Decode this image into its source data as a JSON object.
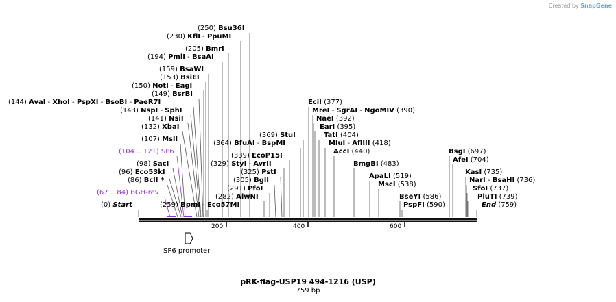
{
  "credit": {
    "prefix": "Created by",
    "brand": "SnapGene"
  },
  "title": "pRK-flag-USP19 494-1216 (USP)",
  "length": "759 bp",
  "feature": {
    "name": "SP6 promoter"
  },
  "ruler": {
    "ticks": [
      "200",
      "400",
      "600"
    ]
  },
  "labels": [
    {
      "pos": "(250)",
      "names": [
        "Bsu36I"
      ]
    },
    {
      "pos": "(230)",
      "names": [
        "KflI",
        "PpuMI"
      ]
    },
    {
      "pos": "(205)",
      "names": [
        "BmrI"
      ]
    },
    {
      "pos": "(194)",
      "names": [
        "PmlI",
        "BsaAI"
      ]
    },
    {
      "pos": "(159)",
      "names": [
        "BsaWI"
      ]
    },
    {
      "pos": "(153)",
      "names": [
        "BsiEI"
      ]
    },
    {
      "pos": "(150)",
      "names": [
        "NotI",
        "EagI"
      ]
    },
    {
      "pos": "(149)",
      "names": [
        "BsrBI"
      ]
    },
    {
      "pos": "(144)",
      "names": [
        "AvaI",
        "XhoI",
        "PspXI",
        "BsoBI",
        "PaeR7I"
      ]
    },
    {
      "pos": "(143)",
      "names": [
        "NspI",
        "SphI"
      ]
    },
    {
      "pos": "(141)",
      "names": [
        "NsiI"
      ]
    },
    {
      "pos": "(132)",
      "names": [
        "XbaI"
      ]
    },
    {
      "pos": "(107)",
      "names": [
        "MslI"
      ]
    },
    {
      "pos": "(104 .. 121)",
      "names": [
        "SP6"
      ],
      "primer": true
    },
    {
      "pos": "(98)",
      "names": [
        "SacI"
      ]
    },
    {
      "pos": "(96)",
      "names": [
        "Eco53kI"
      ]
    },
    {
      "pos": "(86)",
      "names": [
        "BclI *"
      ]
    },
    {
      "pos": "(67 .. 84)",
      "names": [
        "BGH-rev"
      ],
      "primer": true
    },
    {
      "pos": "(0)",
      "names": [
        "Start"
      ],
      "style": "start"
    },
    {
      "pos": "(259)",
      "names": [
        "BpmI",
        "Eco57MI"
      ]
    },
    {
      "pos": "(282)",
      "names": [
        "AlwNI"
      ]
    },
    {
      "pos": "(291)",
      "names": [
        "PfoI"
      ]
    },
    {
      "pos": "(305)",
      "names": [
        "BglI"
      ]
    },
    {
      "pos": "(325)",
      "names": [
        "PstI"
      ]
    },
    {
      "pos": "(329)",
      "names": [
        "StyI",
        "AvrII"
      ]
    },
    {
      "pos": "(339)",
      "names": [
        "EcoP15I"
      ]
    },
    {
      "pos": "(364)",
      "names": [
        "BfuAI",
        "BspMI"
      ]
    },
    {
      "pos": "(369)",
      "names": [
        "StuI"
      ]
    },
    {
      "pos": "(377)",
      "names": [
        "EciI"
      ],
      "pos_after": true
    },
    {
      "pos": "(390)",
      "names": [
        "MreI",
        "SgrAI",
        "NgoMIV"
      ],
      "pos_after": true
    },
    {
      "pos": "(392)",
      "names": [
        "NaeI"
      ],
      "pos_after": true
    },
    {
      "pos": "(395)",
      "names": [
        "EarI"
      ],
      "pos_after": true
    },
    {
      "pos": "(404)",
      "names": [
        "TatI"
      ],
      "pos_after": true
    },
    {
      "pos": "(418)",
      "names": [
        "MluI",
        "AflIII"
      ],
      "pos_after": true
    },
    {
      "pos": "(440)",
      "names": [
        "AccI"
      ],
      "pos_after": true
    },
    {
      "pos": "(483)",
      "names": [
        "BmgBI"
      ],
      "pos_after": true
    },
    {
      "pos": "(519)",
      "names": [
        "ApaLI"
      ],
      "pos_after": true
    },
    {
      "pos": "(538)",
      "names": [
        "MscI"
      ],
      "pos_after": true
    },
    {
      "pos": "(586)",
      "names": [
        "BseYI"
      ],
      "pos_after": true
    },
    {
      "pos": "(590)",
      "names": [
        "PspFI"
      ],
      "pos_after": true
    },
    {
      "pos": "(697)",
      "names": [
        "BsgI"
      ],
      "pos_after": true
    },
    {
      "pos": "(704)",
      "names": [
        "AfeI"
      ],
      "pos_after": true
    },
    {
      "pos": "(735)",
      "names": [
        "KasI"
      ],
      "pos_after": true
    },
    {
      "pos": "(736)",
      "names": [
        "NarI",
        "BsaHI"
      ],
      "pos_after": true
    },
    {
      "pos": "(737)",
      "names": [
        "SfoI"
      ],
      "pos_after": true
    },
    {
      "pos": "(739)",
      "names": [
        "PluTI"
      ],
      "pos_after": true
    },
    {
      "pos": "(759)",
      "names": [
        "End"
      ],
      "pos_after": true,
      "style": "end"
    }
  ]
}
